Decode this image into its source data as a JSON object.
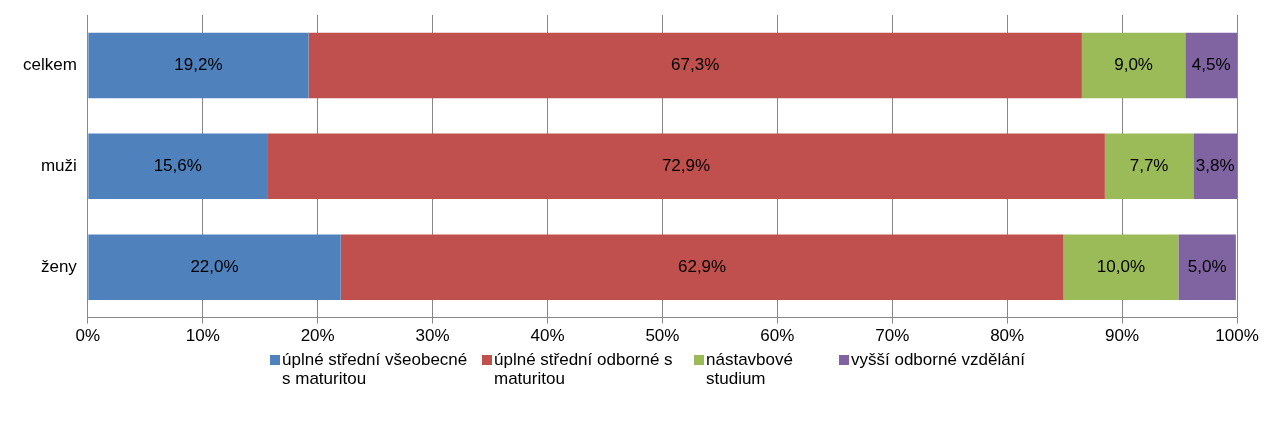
{
  "chart_data": {
    "type": "bar",
    "orientation": "horizontal",
    "stacked": true,
    "categories": [
      "celkem",
      "muži",
      "ženy"
    ],
    "series": [
      {
        "name": "úplné střední všeobecné s maturitou",
        "color": "#4f81bd",
        "values": [
          19.2,
          15.6,
          22.0
        ],
        "value_labels": [
          "19,2%",
          "15,6%",
          "22,0%"
        ]
      },
      {
        "name": "úplné střední odborné s maturitou",
        "color": "#c0504d",
        "values": [
          67.3,
          72.9,
          62.9
        ],
        "value_labels": [
          "67,3%",
          "72,9%",
          "62,9%"
        ]
      },
      {
        "name": "nástavbové studium",
        "color": "#9bbb59",
        "values": [
          9.0,
          7.7,
          10.0
        ],
        "value_labels": [
          "9,0%",
          "7,7%",
          "10,0%"
        ]
      },
      {
        "name": "vyšší odborné vzdělání",
        "color": "#8064a2",
        "values": [
          4.5,
          3.8,
          5.0
        ],
        "value_labels": [
          "4,5%",
          "3,8%",
          "5,0%"
        ]
      }
    ],
    "xlim": [
      0,
      100
    ],
    "xticks": [
      {
        "value": 0,
        "label": "0%"
      },
      {
        "value": 10,
        "label": "10%"
      },
      {
        "value": 20,
        "label": "20%"
      },
      {
        "value": 30,
        "label": "30%"
      },
      {
        "value": 40,
        "label": "40%"
      },
      {
        "value": 50,
        "label": "50%"
      },
      {
        "value": 60,
        "label": "60%"
      },
      {
        "value": 70,
        "label": "70%"
      },
      {
        "value": 80,
        "label": "80%"
      },
      {
        "value": 90,
        "label": "90%"
      },
      {
        "value": 100,
        "label": "100%"
      }
    ],
    "grid": "x",
    "legend": "bottom"
  }
}
